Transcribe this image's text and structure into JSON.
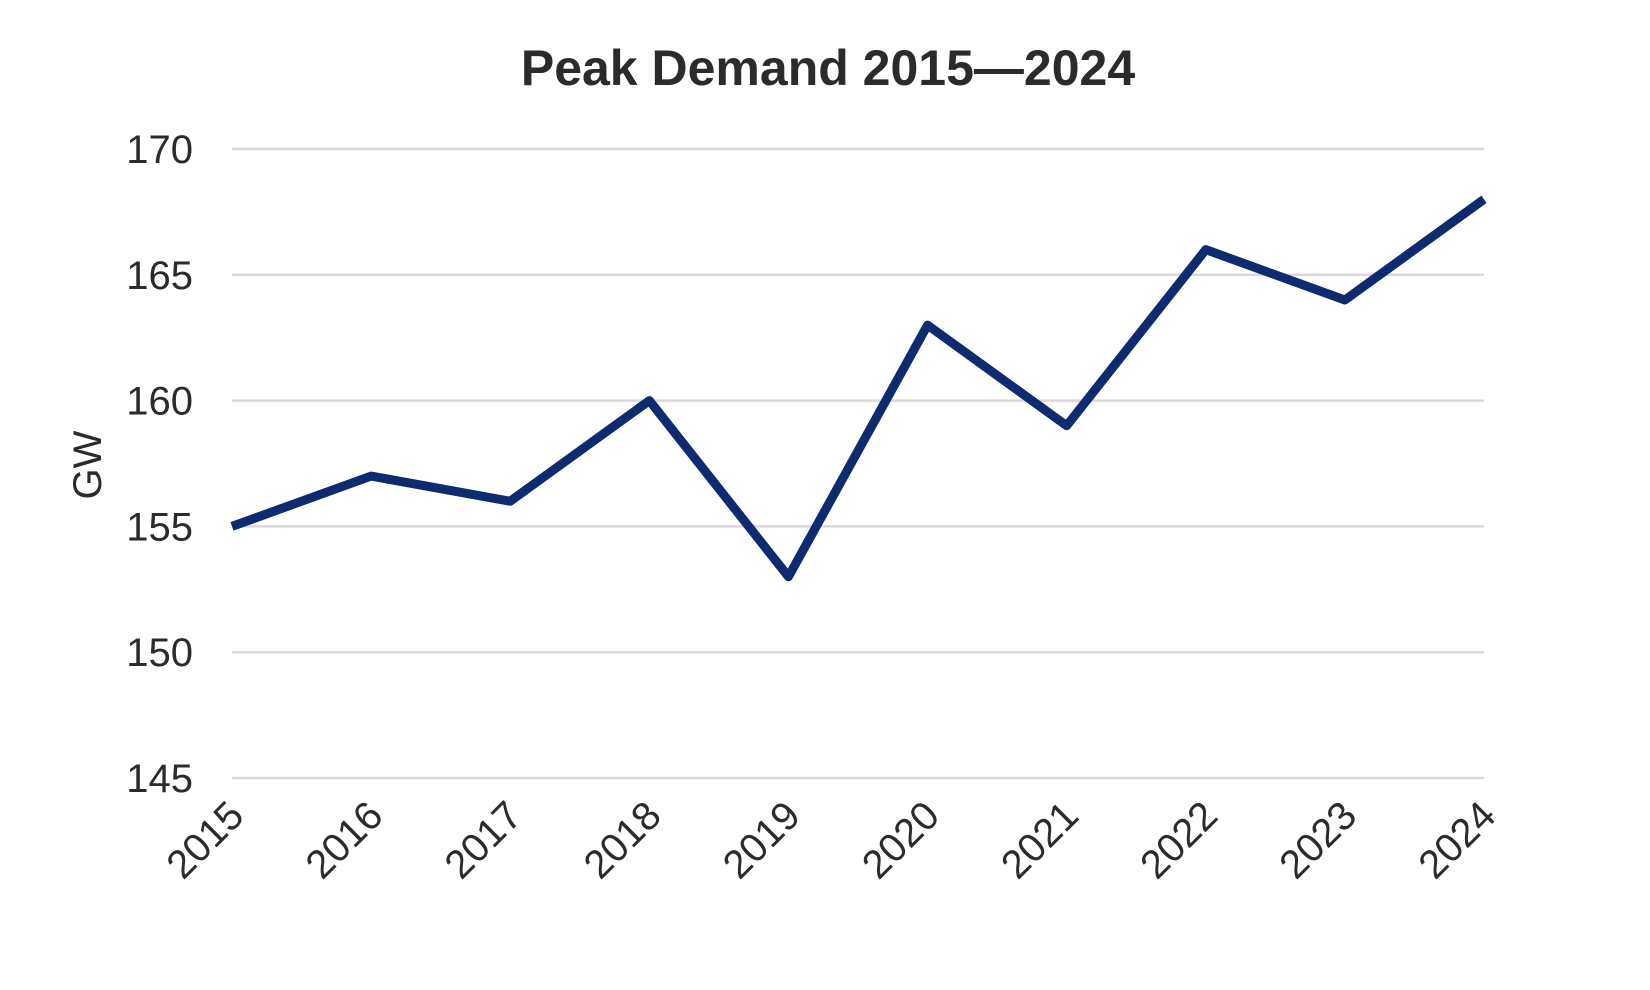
{
  "chart_data": {
    "type": "line",
    "title": "Peak Demand 2015—2024",
    "xlabel": "",
    "ylabel": "GW",
    "categories": [
      "2015",
      "2016",
      "2017",
      "2018",
      "2019",
      "2020",
      "2021",
      "2022",
      "2023",
      "2024"
    ],
    "series": [
      {
        "name": "Peak Demand",
        "color": "#0d2b6e",
        "values": [
          155,
          157,
          156,
          160,
          153,
          163,
          159,
          166,
          164,
          168
        ]
      }
    ],
    "ylim": [
      145,
      170
    ],
    "yticks": [
      145,
      150,
      155,
      160,
      165,
      170
    ],
    "grid": true,
    "legend": null
  }
}
